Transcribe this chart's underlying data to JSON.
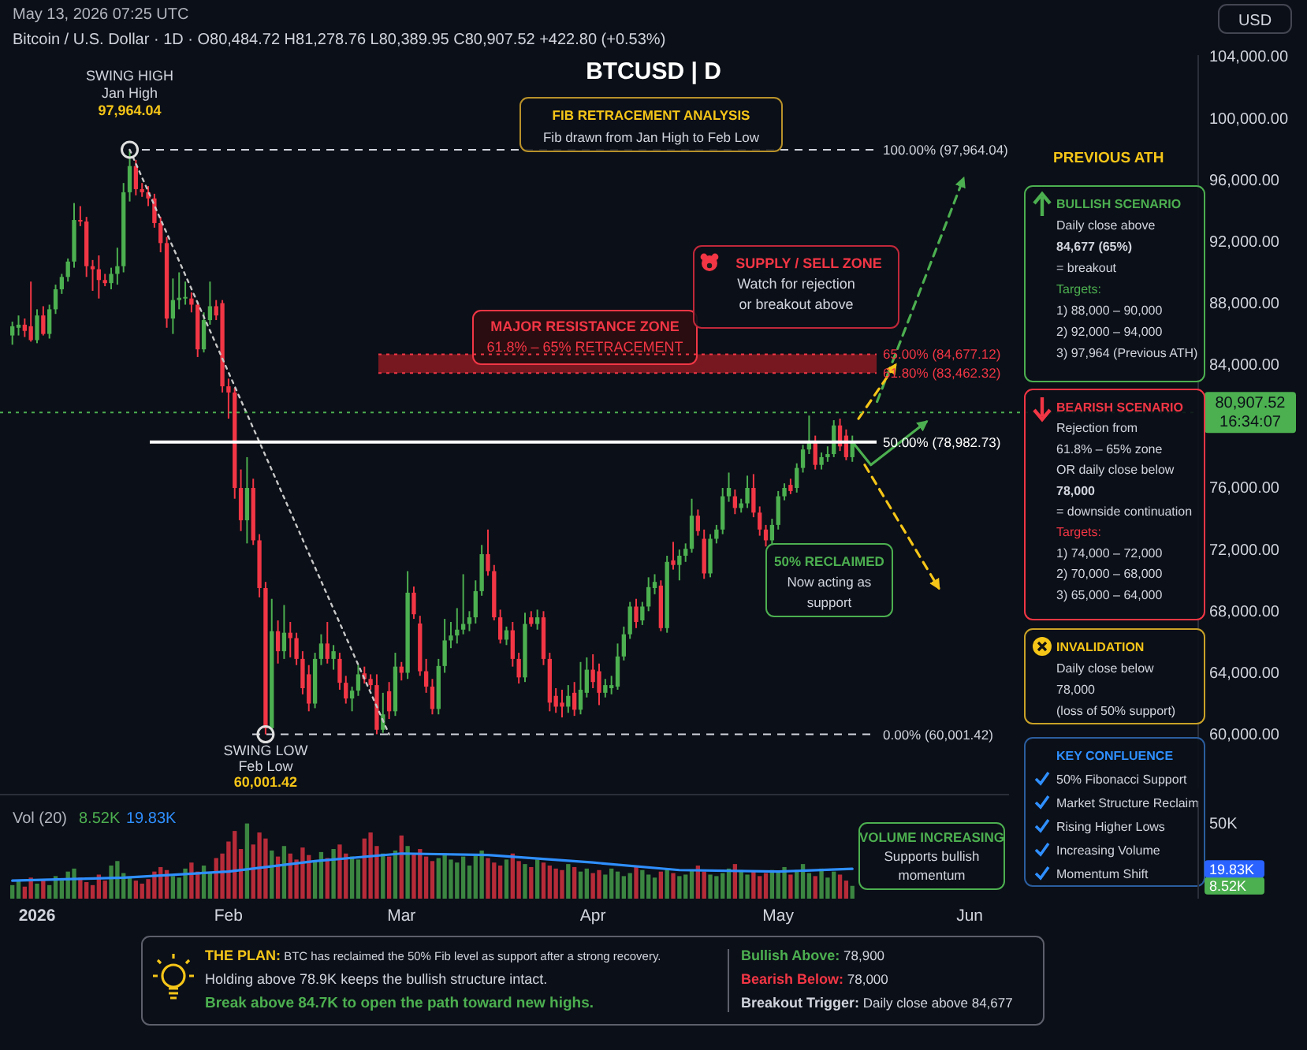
{
  "chart_data": [
    {
      "type": "candlestick",
      "title": "BTCUSD | D",
      "subtitle": "Bitcoin / U.S. Dollar · 1D · O80,484.72 H81,278.76 L80,389.95 C80,907.52 +422.80 (+0.53%)",
      "x": [
        "2025-12-28",
        "2025-12-29",
        "2025-12-30",
        "2025-12-31",
        "2026-01-01",
        "2026-01-02",
        "2026-01-03",
        "2026-01-04",
        "2026-01-05",
        "2026-01-06",
        "2026-01-07",
        "2026-01-08",
        "2026-01-09",
        "2026-01-10",
        "2026-01-11",
        "2026-01-12",
        "2026-01-13",
        "2026-01-14",
        "2026-01-15",
        "2026-01-16",
        "2026-01-17",
        "2026-01-18",
        "2026-01-19",
        "2026-01-20",
        "2026-01-21",
        "2026-01-22",
        "2026-01-23",
        "2026-01-24",
        "2026-01-25",
        "2026-01-26",
        "2026-01-27",
        "2026-01-28",
        "2026-01-29",
        "2026-01-30",
        "2026-01-31",
        "2026-02-01",
        "2026-02-02",
        "2026-02-03",
        "2026-02-04",
        "2026-02-05",
        "2026-02-06",
        "2026-02-07",
        "2026-02-08",
        "2026-02-09",
        "2026-02-10",
        "2026-02-11",
        "2026-02-12",
        "2026-02-13",
        "2026-02-14",
        "2026-02-15",
        "2026-02-16",
        "2026-02-17",
        "2026-02-18",
        "2026-02-19",
        "2026-02-20",
        "2026-02-21",
        "2026-02-22",
        "2026-02-23",
        "2026-02-24",
        "2026-02-25",
        "2026-02-26",
        "2026-02-27",
        "2026-02-28",
        "2026-03-01",
        "2026-03-02",
        "2026-03-03",
        "2026-03-04",
        "2026-03-05",
        "2026-03-06",
        "2026-03-07",
        "2026-03-08",
        "2026-03-09",
        "2026-03-10",
        "2026-03-11",
        "2026-03-12",
        "2026-03-13",
        "2026-03-14",
        "2026-03-15",
        "2026-03-16",
        "2026-03-17",
        "2026-03-18",
        "2026-03-19",
        "2026-03-20",
        "2026-03-21",
        "2026-03-22",
        "2026-03-23",
        "2026-03-24",
        "2026-03-25",
        "2026-03-26",
        "2026-03-27",
        "2026-03-28",
        "2026-03-29",
        "2026-03-30",
        "2026-03-31",
        "2026-04-01",
        "2026-04-02",
        "2026-04-03",
        "2026-04-04",
        "2026-04-05",
        "2026-04-06",
        "2026-04-07",
        "2026-04-08",
        "2026-04-09",
        "2026-04-10",
        "2026-04-11",
        "2026-04-12",
        "2026-04-13",
        "2026-04-14",
        "2026-04-15",
        "2026-04-16",
        "2026-04-17",
        "2026-04-18",
        "2026-04-19",
        "2026-04-20",
        "2026-04-21",
        "2026-04-22",
        "2026-04-23",
        "2026-04-24",
        "2026-04-25",
        "2026-04-26",
        "2026-04-27",
        "2026-04-28",
        "2026-04-29",
        "2026-04-30",
        "2026-05-01",
        "2026-05-02",
        "2026-05-03",
        "2026-05-04",
        "2026-05-05",
        "2026-05-06",
        "2026-05-07",
        "2026-05-08",
        "2026-05-09",
        "2026-05-10",
        "2026-05-11",
        "2026-05-12",
        "2026-05-13"
      ],
      "xlim": [
        "2025-12-26",
        "2026-07-08"
      ],
      "ylim": [
        56500,
        104100
      ],
      "yticks": [
        {
          "value": 60000,
          "label": "60,000.00"
        },
        {
          "value": 64000,
          "label": "64,000.00"
        },
        {
          "value": 68000,
          "label": "68,000.00"
        },
        {
          "value": 72000,
          "label": "72,000.00"
        },
        {
          "value": 76000,
          "label": "76,000.00"
        },
        {
          "value": 84000,
          "label": "84,000.00"
        },
        {
          "value": 88000,
          "label": "88,000.00"
        },
        {
          "value": 92000,
          "label": "92,000.00"
        },
        {
          "value": 96000,
          "label": "96,000.00"
        },
        {
          "value": 100000,
          "label": "100,000.00"
        },
        {
          "value": 104000,
          "label": "104,000.00"
        }
      ],
      "tick_labels": "y",
      "series": [
        {
          "type": "candlestick",
          "ohlc": [
            [
              85900,
              86800,
              85300,
              86500
            ],
            [
              86400,
              87200,
              85900,
              86600
            ],
            [
              86600,
              87000,
              85800,
              86200
            ],
            [
              86500,
              89400,
              85500,
              85600
            ],
            [
              85600,
              87600,
              85400,
              87200
            ],
            [
              87200,
              87800,
              85900,
              86000
            ],
            [
              86000,
              87900,
              85700,
              87600
            ],
            [
              87600,
              89200,
              87300,
              88900
            ],
            [
              88900,
              89900,
              88600,
              89700
            ],
            [
              89700,
              90900,
              89400,
              90700
            ],
            [
              90700,
              94500,
              90300,
              93400
            ],
            [
              93400,
              94300,
              93000,
              93300
            ],
            [
              93300,
              93600,
              89700,
              90400
            ],
            [
              90400,
              90800,
              88800,
              90200
            ],
            [
              90200,
              91100,
              88300,
              89500
            ],
            [
              89500,
              89900,
              89100,
              89300
            ],
            [
              89300,
              90300,
              88900,
              89900
            ],
            [
              89900,
              91600,
              89200,
              90400
            ],
            [
              90400,
              95800,
              90000,
              95200
            ],
            [
              95200,
              97964.04,
              94600,
              96900
            ],
            [
              96900,
              97300,
              95000,
              95400
            ],
            [
              95400,
              95800,
              94900,
              95200
            ],
            [
              95200,
              95600,
              94300,
              94800
            ],
            [
              94800,
              95100,
              92900,
              93200
            ],
            [
              93200,
              93600,
              91300,
              91900
            ],
            [
              91900,
              92300,
              86400,
              87000
            ],
            [
              87000,
              89600,
              86000,
              88200
            ],
            [
              88200,
              90000,
              87600,
              88350
            ],
            [
              88350,
              89400,
              87900,
              88400
            ],
            [
              88300,
              88700,
              87400,
              87900
            ],
            [
              87900,
              88100,
              84500,
              85000
            ],
            [
              85000,
              87400,
              84800,
              86900
            ],
            [
              86900,
              89400,
              86600,
              87800
            ],
            [
              87800,
              88200,
              86900,
              87200
            ],
            [
              88000,
              88200,
              82200,
              82600
            ],
            [
              82600,
              83100,
              80500,
              82200
            ],
            [
              82200,
              82500,
              75300,
              76000
            ],
            [
              76000,
              77200,
              73200,
              73900
            ],
            [
              73900,
              78000,
              72400,
              76000
            ],
            [
              76000,
              76600,
              72300,
              72600
            ],
            [
              72600,
              73000,
              68900,
              69500
            ],
            [
              69500,
              69900,
              60001.42,
              60400
            ],
            [
              60400,
              68800,
              60200,
              66700
            ],
            [
              66700,
              67400,
              64600,
              65400
            ],
            [
              65400,
              68400,
              64900,
              66600
            ],
            [
              66600,
              67300,
              65000,
              66250
            ],
            [
              66250,
              66600,
              64500,
              64900
            ],
            [
              64900,
              65400,
              62600,
              63000
            ],
            [
              63900,
              64500,
              61500,
              62000
            ],
            [
              62000,
              65300,
              61700,
              64900
            ],
            [
              64900,
              66500,
              64500,
              65900
            ],
            [
              65900,
              67300,
              64600,
              64900
            ],
            [
              64900,
              65800,
              64200,
              65400
            ],
            [
              64900,
              65300,
              62900,
              63350
            ],
            [
              63350,
              63800,
              62000,
              62330
            ],
            [
              62330,
              63100,
              61500,
              62840
            ],
            [
              62840,
              64500,
              62500,
              63900
            ],
            [
              63960,
              64400,
              63300,
              63600
            ],
            [
              63600,
              63900,
              62900,
              63200
            ],
            [
              63200,
              63900,
              60010,
              60300
            ],
            [
              60300,
              62700,
              60100,
              61300
            ],
            [
              62800,
              63400,
              61000,
              61500
            ],
            [
              61500,
              65300,
              61200,
              64400
            ],
            [
              64400,
              64700,
              63500,
              64000
            ],
            [
              64000,
              70600,
              63600,
              69200
            ],
            [
              69200,
              69600,
              67500,
              67800
            ],
            [
              67200,
              67700,
              63800,
              64100
            ],
            [
              64100,
              64900,
              62700,
              63100
            ],
            [
              63100,
              63600,
              61300,
              61650
            ],
            [
              61650,
              64900,
              61300,
              64440
            ],
            [
              64440,
              67500,
              64000,
              66100
            ],
            [
              66100,
              67300,
              65600,
              66420
            ],
            [
              66420,
              68200,
              65900,
              66800
            ],
            [
              66800,
              70400,
              66500,
              67170
            ],
            [
              67170,
              68000,
              66700,
              67600
            ],
            [
              67600,
              70000,
              67200,
              69300
            ],
            [
              69300,
              72300,
              69000,
              71700
            ],
            [
              71700,
              73300,
              70300,
              70600
            ],
            [
              70600,
              71000,
              67400,
              67600
            ],
            [
              67600,
              68100,
              65900,
              66150
            ],
            [
              66150,
              67000,
              65800,
              66760
            ],
            [
              66760,
              67300,
              64400,
              64900
            ],
            [
              64900,
              65300,
              63300,
              63700
            ],
            [
              63700,
              67900,
              63400,
              67170
            ],
            [
              67600,
              68000,
              67000,
              67170
            ],
            [
              67170,
              68100,
              66800,
              67600
            ],
            [
              67600,
              68000,
              64500,
              64900
            ],
            [
              64900,
              65300,
              61500,
              62060
            ],
            [
              62500,
              63000,
              61400,
              61800
            ],
            [
              62060,
              62900,
              61100,
              61800
            ],
            [
              61800,
              63200,
              61400,
              62500
            ],
            [
              62700,
              63400,
              61200,
              61600
            ],
            [
              61600,
              64700,
              61300,
              62900
            ],
            [
              62700,
              65000,
              62400,
              64200
            ],
            [
              64200,
              65200,
              63000,
              63400
            ],
            [
              64100,
              64600,
              61900,
              62700
            ],
            [
              62700,
              63600,
              62400,
              63200
            ],
            [
              63000,
              63800,
              62600,
              63200
            ],
            [
              63100,
              65900,
              62900,
              65060
            ],
            [
              65060,
              67000,
              64800,
              66500
            ],
            [
              66500,
              68600,
              66200,
              68300
            ],
            [
              68300,
              68800,
              66900,
              67300
            ],
            [
              67400,
              68600,
              67100,
              68300
            ],
            [
              68300,
              70200,
              68000,
              69560
            ],
            [
              69500,
              70400,
              69100,
              69900
            ],
            [
              69660,
              70000,
              66700,
              66900
            ],
            [
              66900,
              71600,
              66600,
              71200
            ],
            [
              71300,
              72500,
              70700,
              71000
            ],
            [
              71000,
              72000,
              70000,
              71600
            ],
            [
              71600,
              72400,
              71200,
              72050
            ],
            [
              72050,
              75300,
              71800,
              74200
            ],
            [
              74200,
              74600,
              72900,
              73200
            ],
            [
              72700,
              73300,
              70100,
              70450
            ],
            [
              70450,
              73000,
              70200,
              72700
            ],
            [
              72700,
              73600,
              72400,
              73300
            ],
            [
              73300,
              76000,
              73000,
              75460
            ],
            [
              75460,
              77000,
              75100,
              76000
            ],
            [
              75460,
              75900,
              74300,
              74700
            ],
            [
              74700,
              75300,
              74400,
              75000
            ],
            [
              75000,
              76800,
              74700,
              76000
            ],
            [
              76000,
              76900,
              74100,
              74400
            ],
            [
              74400,
              74800,
              72900,
              73300
            ],
            [
              73300,
              73600,
              72200,
              72600
            ],
            [
              72600,
              74000,
              72300,
              73600
            ],
            [
              73600,
              75800,
              73300,
              75460
            ],
            [
              75460,
              76300,
              75200,
              76000
            ],
            [
              76200,
              76600,
              75600,
              75800
            ],
            [
              76000,
              77600,
              75700,
              77300
            ],
            [
              77300,
              78800,
              77000,
              78500
            ],
            [
              78500,
              80700,
              78200,
              79000
            ],
            [
              79000,
              79400,
              77200,
              77500
            ],
            [
              77500,
              78300,
              77200,
              78000
            ],
            [
              78000,
              78700,
              77700,
              78200
            ],
            [
              78200,
              80400,
              78000,
              80060
            ],
            [
              80060,
              80500,
              78400,
              78700
            ],
            [
              79400,
              79800,
              77800,
              78000
            ],
            [
              78000,
              79400,
              77700,
              79000
            ]
          ],
          "colors": [
            "#4caf50",
            "#4caf50",
            "#f23645",
            "#f23645",
            "#4caf50",
            "#f23645",
            "#4caf50",
            "#4caf50",
            "#4caf50",
            "#4caf50",
            "#4caf50",
            "#f23645",
            "#f23645",
            "#f23645",
            "#f23645",
            "#f23645",
            "#4caf50",
            "#4caf50",
            "#4caf50",
            "#4caf50",
            "#f23645",
            "#f23645",
            "#f23645",
            "#f23645",
            "#f23645",
            "#f23645",
            "#4caf50",
            "#4caf50",
            "#4caf50",
            "#f23645",
            "#f23645",
            "#4caf50",
            "#4caf50",
            "#f23645",
            "#f23645",
            "#f23645",
            "#f23645",
            "#f23645",
            "#4caf50",
            "#f23645",
            "#f23645",
            "#f23645",
            "#4caf50",
            "#f23645",
            "#4caf50",
            "#f23645",
            "#f23645",
            "#f23645",
            "#f23645",
            "#4caf50",
            "#4caf50",
            "#f23645",
            "#4caf50",
            "#f23645",
            "#f23645",
            "#4caf50",
            "#4caf50",
            "#f23645",
            "#f23645",
            "#f23645",
            "#4caf50",
            "#f23645",
            "#4caf50",
            "#f23645",
            "#4caf50",
            "#f23645",
            "#f23645",
            "#f23645",
            "#f23645",
            "#4caf50",
            "#4caf50",
            "#4caf50",
            "#4caf50",
            "#4caf50",
            "#4caf50",
            "#4caf50",
            "#4caf50",
            "#f23645",
            "#f23645",
            "#f23645",
            "#4caf50",
            "#f23645",
            "#f23645",
            "#4caf50",
            "#f23645",
            "#4caf50",
            "#f23645",
            "#f23645",
            "#f23645",
            "#f23645",
            "#4caf50",
            "#f23645",
            "#4caf50",
            "#4caf50",
            "#f23645",
            "#f23645",
            "#4caf50",
            "#4caf50",
            "#4caf50",
            "#4caf50",
            "#4caf50",
            "#f23645",
            "#4caf50",
            "#4caf50",
            "#4caf50",
            "#f23645",
            "#4caf50",
            "#f23645",
            "#4caf50",
            "#4caf50",
            "#4caf50",
            "#f23645",
            "#f23645",
            "#4caf50",
            "#4caf50",
            "#4caf50",
            "#4caf50",
            "#f23645",
            "#4caf50",
            "#4caf50",
            "#f23645",
            "#f23645",
            "#f23645",
            "#4caf50",
            "#4caf50",
            "#4caf50",
            "#f23645",
            "#4caf50",
            "#4caf50",
            "#4caf50",
            "#f23645",
            "#4caf50",
            "#4caf50",
            "#4caf50",
            "#f23645",
            "#f23645",
            "#4caf50"
          ]
        },
        {
          "type": "line",
          "x": [
            "2026-01-16",
            "2026-02-27"
          ],
          "values": [
            97964.04,
            60001.42
          ],
          "color": "#c8c8c8",
          "line_style": "dotted"
        },
        {
          "type": "line",
          "x": [
            "2026-05-13",
            "2026-05-16",
            "2026-05-25"
          ],
          "values": [
            79000,
            77500,
            80300
          ],
          "color": "#4caf50",
          "line_style": "solid"
        },
        {
          "type": "line",
          "x": [
            "2026-05-17",
            "2026-05-31"
          ],
          "values": [
            81600,
            96100
          ],
          "color": "#4caf50",
          "line_style": "dashed"
        },
        {
          "type": "line",
          "x": [
            "2026-05-14",
            "2026-05-20"
          ],
          "values": [
            80500,
            84000
          ],
          "color": "#f5c518",
          "line_style": "dashed"
        },
        {
          "type": "line",
          "x": [
            "2026-05-15",
            "2026-05-27"
          ],
          "values": [
            77500,
            69500
          ],
          "color": "#f5c518",
          "line_style": "dashed"
        }
      ],
      "ref_lines": [
        {
          "axis": "y",
          "value": 97964.04,
          "label": "100.00% (97,964.04)",
          "color": "#d1d4dc",
          "line_style": "dashed"
        },
        {
          "axis": "y",
          "value": 84677.12,
          "label": "65.00% (84,677.12)",
          "color": "#f23645",
          "line_style": "dotted"
        },
        {
          "axis": "y",
          "value": 83462.32,
          "label": "61.80% (83,462.32)",
          "color": "#f23645",
          "line_style": "dotted"
        },
        {
          "axis": "y",
          "value": 78982.73,
          "label": "50.00% (78,982.73)",
          "color": "#ffffff",
          "line_style": "solid"
        },
        {
          "axis": "y",
          "value": 60001.42,
          "label": "0.00% (60,001.42)",
          "color": "#d1d4dc",
          "line_style": "dashed"
        },
        {
          "axis": "y",
          "value": 80907.52,
          "label": "80,907.52\n16:34:07",
          "color": "#4caf50",
          "line_style": "dotted"
        }
      ],
      "bands": [
        {
          "axis": "y",
          "from": 83462.32,
          "to": 84677.12,
          "label": "MAJOR RESISTANCE ZONE\n61.8% – 65% RETRACEMENT",
          "color": "#8b1a22"
        }
      ],
      "annotations": [
        {
          "text": "SWING HIGH\nJan High\n97,964.04",
          "x": "2026-01-16",
          "y": 97964.04
        },
        {
          "text": "SWING LOW\nFeb Low\n60,001.42",
          "x": "2026-02-07",
          "y": 60001.42
        },
        "FIB RETRACEMENT ANALYSIS\nFib drawn from Jan High to Feb Low",
        "PREVIOUS ATH",
        "SUPPLY / SELL ZONE\nWatch for rejection\nor breakout above",
        "50% RECLAIMED\nNow acting as\nsupport",
        "BULLISH SCENARIO\nDaily close above\n84,677 (65%)\n= breakout\nTargets:\n1) 88,000 – 90,000\n2) 92,000 – 94,000\n3) 97,964 (Previous ATH)",
        "BEARISH SCENARIO\nRejection from\n61.8% – 65% zone\nOR daily close below\n78,000\n= downside continuation\nTargets:\n1) 74,000 – 72,000\n2) 70,000 – 68,000\n3) 65,000 – 64,000",
        "INVALIDATION\nDaily close below\n78,000\n(loss of 50% support)",
        "KEY CONFLUENCE\n50% Fibonacci Support\nMarket Structure Reclaim\nRising Higher Lows\nIncreasing Volume\nMomentum Shift",
        "May 13, 2026 07:25 UTC",
        "USD"
      ]
    },
    {
      "type": "bar",
      "x": [
        "2025-12-28",
        "2025-12-29",
        "2025-12-30",
        "2025-12-31",
        "2026-01-01",
        "2026-01-02",
        "2026-01-03",
        "2026-01-04",
        "2026-01-05",
        "2026-01-06",
        "2026-01-07",
        "2026-01-08",
        "2026-01-09",
        "2026-01-10",
        "2026-01-11",
        "2026-01-12",
        "2026-01-13",
        "2026-01-14",
        "2026-01-15",
        "2026-01-16",
        "2026-01-17",
        "2026-01-18",
        "2026-01-19",
        "2026-01-20",
        "2026-01-21",
        "2026-01-22",
        "2026-01-23",
        "2026-01-24",
        "2026-01-25",
        "2026-01-26",
        "2026-01-27",
        "2026-01-28",
        "2026-01-29",
        "2026-01-30",
        "2026-01-31",
        "2026-02-01",
        "2026-02-02",
        "2026-02-03",
        "2026-02-04",
        "2026-02-05",
        "2026-02-06",
        "2026-02-07",
        "2026-02-08",
        "2026-02-09",
        "2026-02-10",
        "2026-02-11",
        "2026-02-12",
        "2026-02-13",
        "2026-02-14",
        "2026-02-15",
        "2026-02-16",
        "2026-02-17",
        "2026-02-18",
        "2026-02-19",
        "2026-02-20",
        "2026-02-21",
        "2026-02-22",
        "2026-02-23",
        "2026-02-24",
        "2026-02-25",
        "2026-02-26",
        "2026-02-27",
        "2026-02-28",
        "2026-03-01",
        "2026-03-02",
        "2026-03-03",
        "2026-03-04",
        "2026-03-05",
        "2026-03-06",
        "2026-03-07",
        "2026-03-08",
        "2026-03-09",
        "2026-03-10",
        "2026-03-11",
        "2026-03-12",
        "2026-03-13",
        "2026-03-14",
        "2026-03-15",
        "2026-03-16",
        "2026-03-17",
        "2026-03-18",
        "2026-03-19",
        "2026-03-20",
        "2026-03-21",
        "2026-03-22",
        "2026-03-23",
        "2026-03-24",
        "2026-03-25",
        "2026-03-26",
        "2026-03-27",
        "2026-03-28",
        "2026-03-29",
        "2026-03-30",
        "2026-03-31",
        "2026-04-01",
        "2026-04-02",
        "2026-04-03",
        "2026-04-04",
        "2026-04-05",
        "2026-04-06",
        "2026-04-07",
        "2026-04-08",
        "2026-04-09",
        "2026-04-10",
        "2026-04-11",
        "2026-04-12",
        "2026-04-13",
        "2026-04-14",
        "2026-04-15",
        "2026-04-16",
        "2026-04-17",
        "2026-04-18",
        "2026-04-19",
        "2026-04-20",
        "2026-04-21",
        "2026-04-22",
        "2026-04-23",
        "2026-04-24",
        "2026-04-25",
        "2026-04-26",
        "2026-04-27",
        "2026-04-28",
        "2026-04-29",
        "2026-04-30",
        "2026-05-01",
        "2026-05-02",
        "2026-05-03",
        "2026-05-04",
        "2026-05-05",
        "2026-05-06",
        "2026-05-07",
        "2026-05-08",
        "2026-05-09",
        "2026-05-10",
        "2026-05-11",
        "2026-05-12",
        "2026-05-13"
      ],
      "xlim": [
        "2025-12-26",
        "2026-07-08"
      ],
      "xticks": [
        {
          "value": "2026-01-01",
          "label": "2026"
        },
        {
          "value": "2026-02-01",
          "label": "Feb"
        },
        {
          "value": "2026-03-01",
          "label": "Mar"
        },
        {
          "value": "2026-04-01",
          "label": "Apr"
        },
        {
          "value": "2026-05-01",
          "label": "May"
        },
        {
          "value": "2026-06-01",
          "label": "Jun"
        }
      ],
      "ylim": [
        0,
        65
      ],
      "yticks": [
        {
          "value": 8.52,
          "label": "8.52K"
        },
        {
          "value": 19.83,
          "label": "19.83K"
        },
        {
          "value": 50,
          "label": "50K"
        }
      ],
      "series": [
        {
          "values": [
            9,
            12,
            8,
            14,
            10,
            13,
            9,
            15,
            12,
            18,
            20,
            14,
            11,
            9,
            16,
            12,
            22,
            25,
            17,
            14,
            12,
            10,
            13,
            18,
            21,
            19,
            15,
            14,
            20,
            24,
            18,
            22,
            17,
            27,
            30,
            38,
            45,
            33,
            50,
            36,
            44,
            40,
            32,
            28,
            35,
            30,
            26,
            34,
            29,
            25,
            31,
            27,
            33,
            36,
            30,
            28,
            26,
            40,
            44,
            35,
            30,
            28,
            32,
            42,
            35,
            30,
            33,
            28,
            25,
            27,
            30,
            26,
            24,
            28,
            22,
            29,
            32,
            27,
            24,
            22,
            26,
            30,
            25,
            23,
            21,
            26,
            24,
            22,
            20,
            19,
            23,
            21,
            18,
            20,
            17,
            19,
            16,
            20,
            18,
            15,
            17,
            21,
            19,
            16,
            14,
            18,
            20,
            17,
            15,
            16,
            19,
            22,
            18,
            16,
            15,
            17,
            20,
            23,
            19,
            16,
            18,
            15,
            17,
            19,
            18,
            21,
            16,
            19,
            23,
            17,
            15,
            20,
            14,
            18,
            16,
            12,
            8.52
          ],
          "colors": [
            "#4caf50",
            "#4caf50",
            "#f23645",
            "#f23645",
            "#4caf50",
            "#f23645",
            "#4caf50",
            "#4caf50",
            "#4caf50",
            "#4caf50",
            "#4caf50",
            "#f23645",
            "#f23645",
            "#f23645",
            "#f23645",
            "#f23645",
            "#4caf50",
            "#4caf50",
            "#4caf50",
            "#4caf50",
            "#f23645",
            "#f23645",
            "#f23645",
            "#f23645",
            "#f23645",
            "#f23645",
            "#4caf50",
            "#4caf50",
            "#4caf50",
            "#f23645",
            "#f23645",
            "#4caf50",
            "#4caf50",
            "#f23645",
            "#f23645",
            "#f23645",
            "#f23645",
            "#f23645",
            "#4caf50",
            "#f23645",
            "#f23645",
            "#f23645",
            "#4caf50",
            "#f23645",
            "#4caf50",
            "#f23645",
            "#f23645",
            "#f23645",
            "#f23645",
            "#4caf50",
            "#4caf50",
            "#f23645",
            "#4caf50",
            "#f23645",
            "#f23645",
            "#4caf50",
            "#4caf50",
            "#f23645",
            "#f23645",
            "#f23645",
            "#4caf50",
            "#f23645",
            "#4caf50",
            "#f23645",
            "#4caf50",
            "#f23645",
            "#f23645",
            "#f23645",
            "#f23645",
            "#4caf50",
            "#4caf50",
            "#4caf50",
            "#4caf50",
            "#4caf50",
            "#4caf50",
            "#4caf50",
            "#4caf50",
            "#f23645",
            "#f23645",
            "#f23645",
            "#4caf50",
            "#f23645",
            "#f23645",
            "#4caf50",
            "#f23645",
            "#4caf50",
            "#f23645",
            "#f23645",
            "#f23645",
            "#f23645",
            "#4caf50",
            "#f23645",
            "#4caf50",
            "#4caf50",
            "#f23645",
            "#f23645",
            "#4caf50",
            "#4caf50",
            "#4caf50",
            "#4caf50",
            "#4caf50",
            "#f23645",
            "#4caf50",
            "#4caf50",
            "#4caf50",
            "#f23645",
            "#4caf50",
            "#f23645",
            "#4caf50",
            "#4caf50",
            "#4caf50",
            "#f23645",
            "#f23645",
            "#4caf50",
            "#4caf50",
            "#4caf50",
            "#4caf50",
            "#f23645",
            "#4caf50",
            "#4caf50",
            "#f23645",
            "#f23645",
            "#f23645",
            "#4caf50",
            "#4caf50",
            "#4caf50",
            "#f23645",
            "#4caf50",
            "#4caf50",
            "#4caf50",
            "#f23645",
            "#4caf50",
            "#4caf50",
            "#4caf50",
            "#f23645",
            "#f23645",
            "#4caf50"
          ]
        },
        {
          "type": "line",
          "x": [
            "2025-12-28",
            "2026-01-15",
            "2026-02-01",
            "2026-02-15",
            "2026-03-01",
            "2026-03-15",
            "2026-04-01",
            "2026-04-15",
            "2026-05-01",
            "2026-05-13"
          ],
          "values": [
            12,
            14,
            18,
            25,
            30,
            29,
            24,
            19,
            18,
            19.83
          ],
          "color": "#2f8fff"
        }
      ],
      "annotations": [
        "Vol (20)",
        "8.52K",
        "19.83K",
        "VOLUME INCREASING\nSupports bullish\nmomentum",
        "THE PLAN: BTC has reclaimed the 50% Fib level as support after a strong recovery.\nHolding above 78.9K keeps the bullish structure intact.\nBreak above 84.7K to open the path toward new highs.",
        "Bullish Above: 78,900\nBearish Below: 78,000\nBreakout Trigger: Daily close above 84,677"
      ]
    }
  ]
}
